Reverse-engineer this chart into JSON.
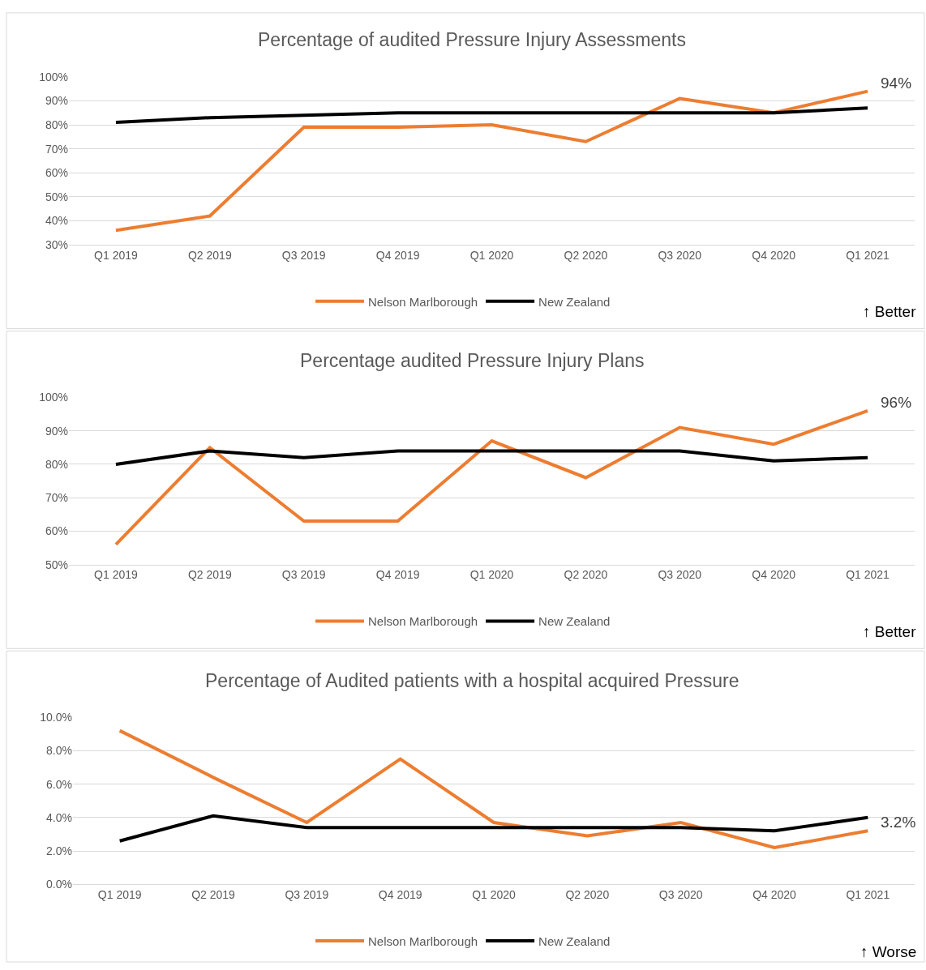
{
  "chart_data": [
    {
      "type": "line",
      "title": "Percentage of audited Pressure Injury Assessments",
      "categories": [
        "Q1 2019",
        "Q2 2019",
        "Q3 2019",
        "Q4 2019",
        "Q1 2020",
        "Q2 2020",
        "Q3 2020",
        "Q4 2020",
        "Q1 2021"
      ],
      "series": [
        {
          "name": "Nelson Marlborough",
          "color": "#ed7d31",
          "values": [
            36,
            42,
            79,
            79,
            80,
            73,
            91,
            85,
            94
          ]
        },
        {
          "name": "New Zealand",
          "color": "#000000",
          "values": [
            81,
            83,
            84,
            85,
            85,
            85,
            85,
            85,
            87
          ]
        }
      ],
      "ylim": [
        30,
        100
      ],
      "yticks": [
        {
          "value": 30,
          "label": "30%"
        },
        {
          "value": 40,
          "label": "40%"
        },
        {
          "value": 50,
          "label": "50%"
        },
        {
          "value": 60,
          "label": "60%"
        },
        {
          "value": 70,
          "label": "70%"
        },
        {
          "value": 80,
          "label": "80%"
        },
        {
          "value": 90,
          "label": "90%"
        },
        {
          "value": 100,
          "label": "100%"
        }
      ],
      "grid": "y",
      "legend": "bottom",
      "marker": "none",
      "line_style": "solid",
      "annotations": [
        {
          "text": "94%",
          "x": "Q1 2021",
          "y": 94
        },
        "↑ Better"
      ]
    },
    {
      "type": "line",
      "title": "Percentage audited Pressure Injury Plans",
      "categories": [
        "Q1 2019",
        "Q2 2019",
        "Q3 2019",
        "Q4 2019",
        "Q1 2020",
        "Q2 2020",
        "Q3 2020",
        "Q4 2020",
        "Q1 2021"
      ],
      "series": [
        {
          "name": "Nelson Marlborough",
          "color": "#ed7d31",
          "values": [
            56,
            85,
            63,
            63,
            87,
            76,
            91,
            86,
            96
          ]
        },
        {
          "name": "New Zealand",
          "color": "#000000",
          "values": [
            80,
            84,
            82,
            84,
            84,
            84,
            84,
            81,
            82
          ]
        }
      ],
      "ylim": [
        50,
        100
      ],
      "yticks": [
        {
          "value": 50,
          "label": "50%"
        },
        {
          "value": 60,
          "label": "60%"
        },
        {
          "value": 70,
          "label": "70%"
        },
        {
          "value": 80,
          "label": "80%"
        },
        {
          "value": 90,
          "label": "90%"
        },
        {
          "value": 100,
          "label": "100%"
        }
      ],
      "grid": "y",
      "legend": "bottom",
      "marker": "none",
      "line_style": "solid",
      "annotations": [
        {
          "text": "96%",
          "x": "Q1 2021",
          "y": 96
        },
        "↑ Better"
      ]
    },
    {
      "type": "line",
      "title": "Percentage of Audited patients with a hospital acquired Pressure",
      "categories": [
        "Q1 2019",
        "Q2 2019",
        "Q3 2019",
        "Q4 2019",
        "Q1 2020",
        "Q2 2020",
        "Q3 2020",
        "Q4 2020",
        "Q1 2021"
      ],
      "series": [
        {
          "name": "Nelson Marlborough",
          "color": "#ed7d31",
          "values": [
            9.2,
            6.4,
            3.7,
            7.5,
            3.7,
            2.9,
            3.7,
            2.2,
            3.2
          ]
        },
        {
          "name": "New Zealand",
          "color": "#000000",
          "values": [
            2.6,
            4.1,
            3.4,
            3.4,
            3.4,
            3.4,
            3.4,
            3.2,
            4.0
          ]
        }
      ],
      "ylim": [
        0,
        10
      ],
      "yticks": [
        {
          "value": 0,
          "label": "0.0%"
        },
        {
          "value": 2,
          "label": "2.0%"
        },
        {
          "value": 4,
          "label": "4.0%"
        },
        {
          "value": 6,
          "label": "6.0%"
        },
        {
          "value": 8,
          "label": "8.0%"
        },
        {
          "value": 10,
          "label": "10.0%"
        }
      ],
      "grid": "y",
      "legend": "bottom",
      "marker": "none",
      "line_style": "solid",
      "annotations": [
        {
          "text": "3.2%",
          "x": "Q1 2021",
          "y": 3.2
        },
        "↑ Worse"
      ]
    }
  ]
}
